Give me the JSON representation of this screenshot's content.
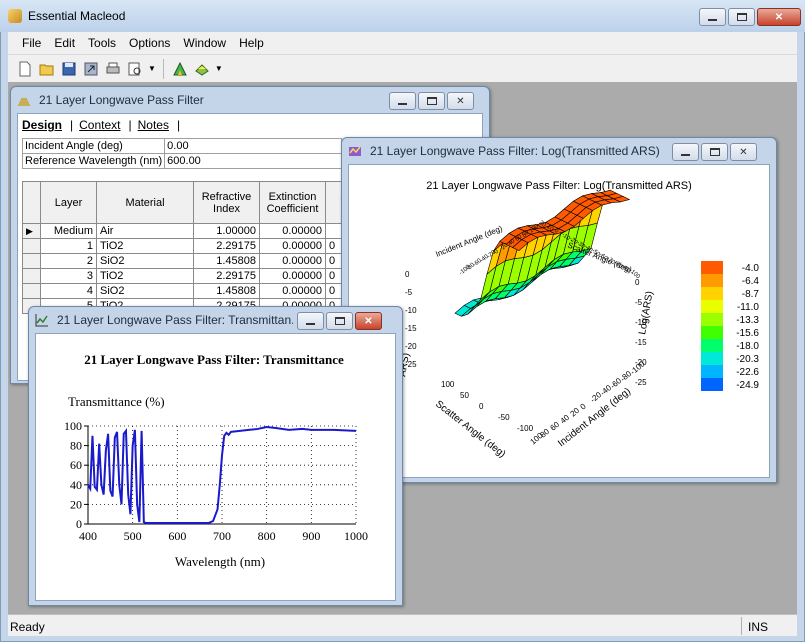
{
  "app": {
    "title": "Essential Macleod",
    "menu": [
      "File",
      "Edit",
      "Tools",
      "Options",
      "Window",
      "Help"
    ],
    "toolbar_icons": [
      "new-icon",
      "open-icon",
      "save-icon",
      "export-icon",
      "print-icon",
      "print-preview-icon",
      "calculate-icon",
      "design-icon"
    ]
  },
  "status": {
    "left": "Ready",
    "right": "INS"
  },
  "design_window": {
    "title": "21 Layer Longwave Pass Filter",
    "tabs": [
      "Design",
      "Context",
      "Notes"
    ],
    "params": [
      {
        "label": "Incident Angle (deg)",
        "value": "0.00"
      },
      {
        "label": "Reference Wavelength (nm)",
        "value": "600.00"
      }
    ],
    "columns": [
      "Layer",
      "Material",
      "Refractive Index",
      "Extinction Coefficient",
      "T"
    ],
    "rows": [
      {
        "layer": "Medium",
        "material": "Air",
        "n": "1.00000",
        "k": "0.00000",
        "t": ""
      },
      {
        "layer": "1",
        "material": "TiO2",
        "n": "2.29175",
        "k": "0.00000",
        "t": "0"
      },
      {
        "layer": "2",
        "material": "SiO2",
        "n": "1.45808",
        "k": "0.00000",
        "t": "0"
      },
      {
        "layer": "3",
        "material": "TiO2",
        "n": "2.29175",
        "k": "0.00000",
        "t": "0"
      },
      {
        "layer": "4",
        "material": "SiO2",
        "n": "1.45808",
        "k": "0.00000",
        "t": "0"
      },
      {
        "layer": "5",
        "material": "TiO2",
        "n": "2.29175",
        "k": "0.00000",
        "t": "0"
      }
    ]
  },
  "ars_window": {
    "title": "21 Layer Longwave Pass Filter: Log(Transmitted ARS)",
    "chart_title": "21 Layer Longwave Pass Filter: Log(Transmitted ARS)",
    "axis_incident_back": "Incident Angle (deg)",
    "axis_scatter_back": "Scatter Angle (deg)",
    "axis_scatter_front": "Scatter Angle (deg)",
    "axis_incident_front": "Incident Angle (deg)",
    "axis_z": "Log(ARS)",
    "axis_z_left": "ARS)",
    "ticks_left": [
      "0",
      "-5",
      "-10",
      "-15",
      "-20",
      "-25"
    ],
    "ticks_right": [
      "0",
      "-5",
      "-10",
      "-15",
      "-20",
      "-25"
    ],
    "ticks_back_incident": [
      "-100",
      "-80",
      "-60",
      "-40",
      "-20",
      "0",
      "20",
      "40",
      "60",
      "80",
      "100"
    ],
    "ticks_back_scatter": [
      "20",
      "10",
      "0",
      "-10",
      "-20",
      "-30",
      "-40",
      "-50",
      "-60",
      "-70",
      "-80",
      "-90",
      "-100"
    ],
    "ticks_front_scatter": [
      "100",
      "50",
      "0",
      "-50",
      "-100"
    ],
    "ticks_front_incident": [
      "100",
      "80",
      "60",
      "40",
      "20",
      "0",
      "-20",
      "-40",
      "-60",
      "-80",
      "-100"
    ]
  },
  "trans_window": {
    "title": "21 Layer Longwave Pass Filter: Transmittan...",
    "chart_title": "21 Layer Longwave Pass Filter: Transmittance"
  },
  "chart_data": [
    {
      "type": "line",
      "title": "21 Layer Longwave Pass Filter: Transmittance",
      "xlabel": "Wavelength (nm)",
      "ylabel": "Transmittance (%)",
      "xlim": [
        400,
        1000
      ],
      "ylim": [
        0,
        100
      ],
      "xticks": [
        400,
        500,
        600,
        700,
        800,
        900,
        1000
      ],
      "yticks": [
        0,
        20,
        40,
        60,
        80,
        100
      ],
      "grid": true,
      "series": [
        {
          "color": "#1a1acc",
          "x": [
            400,
            405,
            410,
            415,
            420,
            425,
            430,
            435,
            440,
            445,
            450,
            455,
            460,
            465,
            470,
            475,
            480,
            485,
            490,
            495,
            500,
            505,
            510,
            515,
            520,
            525,
            530,
            560,
            600,
            640,
            670,
            680,
            690,
            695,
            700,
            705,
            710,
            715,
            720,
            740,
            760,
            780,
            800,
            820,
            850,
            880,
            900,
            950,
            1000
          ],
          "y": [
            40,
            36,
            90,
            38,
            35,
            82,
            40,
            30,
            75,
            92,
            34,
            28,
            88,
            94,
            40,
            20,
            92,
            95,
            30,
            10,
            80,
            96,
            20,
            2,
            95,
            2,
            1,
            1,
            1,
            1,
            1,
            3,
            15,
            40,
            70,
            90,
            93,
            91,
            94,
            95,
            96,
            97,
            99,
            98,
            96,
            97,
            96,
            96,
            95
          ]
        }
      ]
    },
    {
      "type": "surface",
      "title": "21 Layer Longwave Pass Filter: Log(Transmitted ARS)",
      "colorbar_levels": [
        "-4.0",
        "-6.4",
        "-8.7",
        "-11.0",
        "-13.3",
        "-15.6",
        "-18.0",
        "-20.3",
        "-22.6",
        "-24.9"
      ],
      "colorbar_colors": [
        "#ff5a00",
        "#ff9a00",
        "#ffd200",
        "#e8ff00",
        "#9cff00",
        "#3fff00",
        "#00ff6a",
        "#00e8d8",
        "#00b4ff",
        "#0064ff"
      ]
    }
  ]
}
